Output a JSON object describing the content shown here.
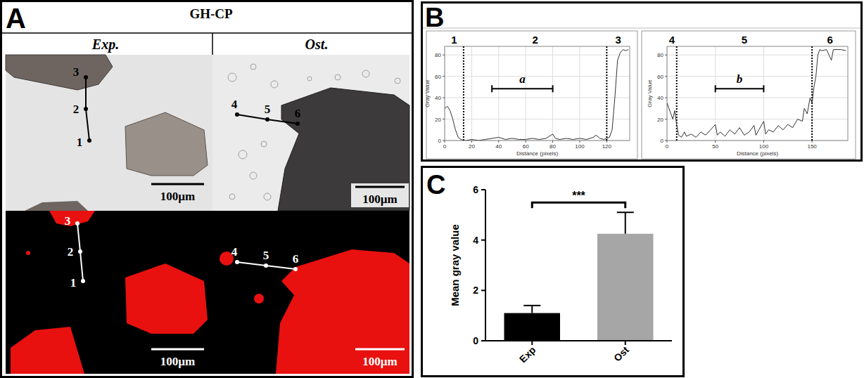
{
  "panel_a": {
    "panel_label": "A",
    "title": "GH-CP",
    "columns": [
      "Exp.",
      "Ost."
    ],
    "point_labels": [
      "1",
      "2",
      "3",
      "4",
      "5",
      "6"
    ],
    "scale_bar_label": "100µm"
  },
  "chart_data": [
    {
      "type": "line",
      "panel_label": "B",
      "xlabel": "Distance (pixels)",
      "ylabel": "Gray Value",
      "x": [
        0,
        2,
        4,
        6,
        8,
        10,
        12,
        14,
        16,
        20,
        25,
        30,
        35,
        40,
        45,
        50,
        55,
        60,
        65,
        70,
        75,
        80,
        82,
        85,
        90,
        95,
        100,
        105,
        110,
        112,
        115,
        118,
        120,
        122,
        124,
        126,
        128,
        130,
        132,
        134,
        136
      ],
      "values": [
        30,
        32,
        28,
        20,
        10,
        3,
        1,
        0,
        0,
        1,
        0,
        1,
        2,
        3,
        1,
        2,
        1,
        1,
        2,
        1,
        2,
        6,
        2,
        1,
        2,
        1,
        2,
        1,
        3,
        5,
        2,
        1,
        2,
        3,
        10,
        40,
        75,
        82,
        85,
        84,
        85
      ],
      "xlim": [
        0,
        137
      ],
      "ylim": [
        0,
        88
      ],
      "xticks": [
        0,
        20,
        40,
        60,
        80,
        100,
        120
      ],
      "yticks": [
        0,
        20,
        40,
        60,
        80
      ],
      "grid": true,
      "color": "#333333",
      "region_labels": [
        "1",
        "2",
        "3"
      ],
      "region_bounds": [
        14,
        120
      ],
      "bracket_label": "a",
      "bracket_range": [
        35,
        80
      ]
    },
    {
      "type": "line",
      "xlabel": "Distance (pixels)",
      "ylabel": "Gray Value",
      "x": [
        0,
        2,
        4,
        6,
        8,
        10,
        12,
        15,
        18,
        20,
        25,
        30,
        35,
        40,
        45,
        50,
        52,
        55,
        60,
        65,
        70,
        75,
        80,
        85,
        90,
        92,
        95,
        100,
        102,
        105,
        110,
        115,
        120,
        125,
        130,
        135,
        140,
        142,
        145,
        148,
        150,
        152,
        154,
        156,
        158,
        160,
        165,
        170,
        172,
        180,
        185
      ],
      "values": [
        35,
        30,
        25,
        20,
        28,
        15,
        5,
        3,
        8,
        4,
        6,
        3,
        8,
        5,
        10,
        15,
        5,
        8,
        4,
        10,
        6,
        12,
        5,
        8,
        14,
        5,
        10,
        18,
        6,
        10,
        8,
        14,
        10,
        15,
        12,
        20,
        18,
        30,
        25,
        40,
        35,
        50,
        60,
        80,
        85,
        84,
        85,
        75,
        85,
        85,
        84
      ],
      "xlim": [
        0,
        187
      ],
      "ylim": [
        0,
        88
      ],
      "xticks": [
        0,
        50,
        100,
        150
      ],
      "yticks": [
        0,
        20,
        40,
        60,
        80
      ],
      "grid": true,
      "color": "#333333",
      "region_labels": [
        "4",
        "5",
        "6"
      ],
      "region_bounds": [
        10,
        150
      ],
      "bracket_label": "b",
      "bracket_range": [
        50,
        100
      ]
    },
    {
      "type": "bar",
      "panel_label": "C",
      "ylabel": "Mean gray value",
      "categories": [
        "Exp",
        "Ost"
      ],
      "values": [
        1.1,
        4.25
      ],
      "errors": [
        0.3,
        0.85
      ],
      "colors": [
        "#000000",
        "#a6a6a6"
      ],
      "ylim": [
        0,
        6
      ],
      "yticks": [
        0,
        2,
        4,
        6
      ],
      "significance": "***"
    }
  ]
}
